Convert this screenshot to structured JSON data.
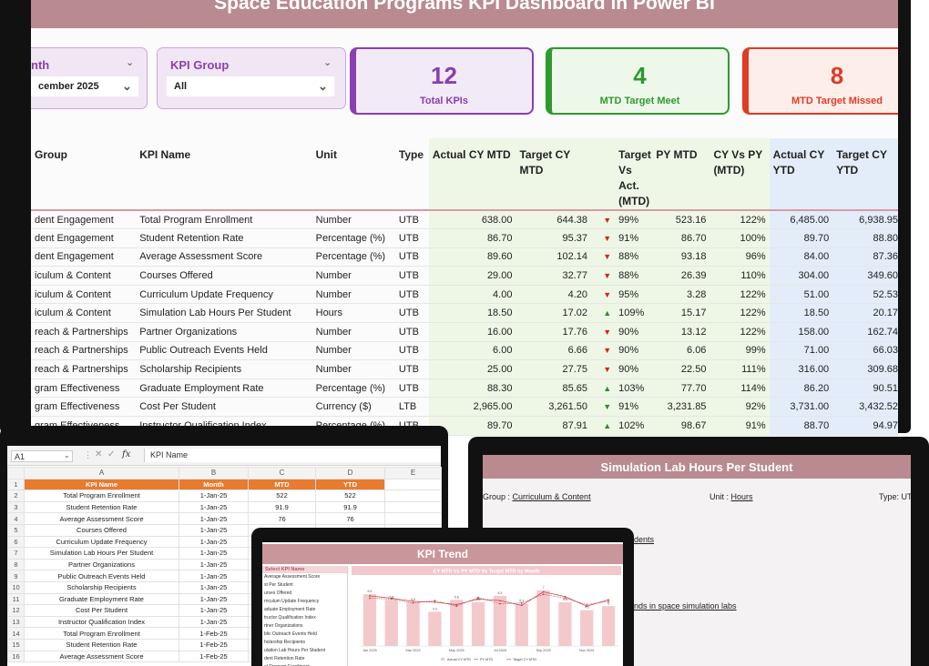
{
  "header": {
    "title": "Space Education Programs KPI Dashboard in Power BI"
  },
  "slicers": {
    "month": {
      "label": "nth",
      "value": "cember 2025"
    },
    "kpi_group": {
      "label": "KPI Group",
      "value": "All"
    }
  },
  "cards": {
    "total": {
      "value": "12",
      "caption": "Total KPIs",
      "color": "#8a3fb0"
    },
    "met": {
      "value": "4",
      "caption": "MTD Target Meet",
      "color": "#2e9a2e"
    },
    "missed": {
      "value": "8",
      "caption": "MTD Target Missed",
      "color": "#e03b24"
    }
  },
  "table": {
    "headers": {
      "group": "Group",
      "name": "KPI Name",
      "unit": "Unit",
      "type": "Type",
      "actual_mtd": "Actual CY MTD",
      "target_mtd": "Target CY MTD",
      "tva": "Target Vs Act. (MTD)",
      "py_mtd": "PY MTD",
      "cy_vs_py": "CY Vs PY (MTD)",
      "actual_ytd": "Actual CY YTD",
      "target_ytd": "Target CY YTD"
    },
    "rows": [
      {
        "group": "dent Engagement",
        "name": "Total Program Enrollment",
        "unit": "Number",
        "type": "UTB",
        "actual_mtd": "638.00",
        "target_mtd": "644.38",
        "dir": "down",
        "tva": "99%",
        "py_mtd": "523.16",
        "cy_vs_py": "122%",
        "actual_ytd": "6,485.00",
        "target_ytd": "6,938.95"
      },
      {
        "group": "dent Engagement",
        "name": "Student Retention Rate",
        "unit": "Percentage (%)",
        "type": "UTB",
        "actual_mtd": "86.70",
        "target_mtd": "95.37",
        "dir": "down",
        "tva": "91%",
        "py_mtd": "86.70",
        "cy_vs_py": "100%",
        "actual_ytd": "89.70",
        "target_ytd": "88.80"
      },
      {
        "group": "dent Engagement",
        "name": "Average Assessment Score",
        "unit": "Percentage (%)",
        "type": "UTB",
        "actual_mtd": "89.60",
        "target_mtd": "102.14",
        "dir": "down",
        "tva": "88%",
        "py_mtd": "93.18",
        "cy_vs_py": "96%",
        "actual_ytd": "84.00",
        "target_ytd": "87.36"
      },
      {
        "group": "iculum & Content",
        "name": "Courses Offered",
        "unit": "Number",
        "type": "UTB",
        "actual_mtd": "29.00",
        "target_mtd": "32.77",
        "dir": "down",
        "tva": "88%",
        "py_mtd": "26.39",
        "cy_vs_py": "110%",
        "actual_ytd": "304.00",
        "target_ytd": "349.60"
      },
      {
        "group": "iculum & Content",
        "name": "Curriculum Update Frequency",
        "unit": "Number",
        "type": "UTB",
        "actual_mtd": "4.00",
        "target_mtd": "4.20",
        "dir": "down",
        "tva": "95%",
        "py_mtd": "3.28",
        "cy_vs_py": "122%",
        "actual_ytd": "51.00",
        "target_ytd": "52.53"
      },
      {
        "group": "iculum & Content",
        "name": "Simulation Lab Hours Per Student",
        "unit": "Hours",
        "type": "UTB",
        "actual_mtd": "18.50",
        "target_mtd": "17.02",
        "dir": "up",
        "tva": "109%",
        "py_mtd": "15.17",
        "cy_vs_py": "122%",
        "actual_ytd": "18.50",
        "target_ytd": "20.17"
      },
      {
        "group": "reach & Partnerships",
        "name": "Partner Organizations",
        "unit": "Number",
        "type": "UTB",
        "actual_mtd": "16.00",
        "target_mtd": "17.76",
        "dir": "down",
        "tva": "90%",
        "py_mtd": "13.12",
        "cy_vs_py": "122%",
        "actual_ytd": "158.00",
        "target_ytd": "162.74"
      },
      {
        "group": "reach & Partnerships",
        "name": "Public Outreach Events Held",
        "unit": "Number",
        "type": "UTB",
        "actual_mtd": "6.00",
        "target_mtd": "6.66",
        "dir": "down",
        "tva": "90%",
        "py_mtd": "6.06",
        "cy_vs_py": "99%",
        "actual_ytd": "71.00",
        "target_ytd": "66.03"
      },
      {
        "group": "reach & Partnerships",
        "name": "Scholarship Recipients",
        "unit": "Number",
        "type": "UTB",
        "actual_mtd": "25.00",
        "target_mtd": "27.75",
        "dir": "down",
        "tva": "90%",
        "py_mtd": "22.50",
        "cy_vs_py": "111%",
        "actual_ytd": "316.00",
        "target_ytd": "309.68"
      },
      {
        "group": "gram Effectiveness",
        "name": "Graduate Employment Rate",
        "unit": "Percentage (%)",
        "type": "UTB",
        "actual_mtd": "88.30",
        "target_mtd": "85.65",
        "dir": "up",
        "tva": "103%",
        "py_mtd": "77.70",
        "cy_vs_py": "114%",
        "actual_ytd": "86.20",
        "target_ytd": "90.51"
      },
      {
        "group": "gram Effectiveness",
        "name": "Cost Per Student",
        "unit": "Currency ($)",
        "type": "LTB",
        "actual_mtd": "2,965.00",
        "target_mtd": "3,261.50",
        "dir": "down-good",
        "tva": "91%",
        "py_mtd": "3,231.85",
        "cy_vs_py": "92%",
        "actual_ytd": "3,731.00",
        "target_ytd": "3,432.52"
      },
      {
        "group": "gram Effectiveness",
        "name": "Instructor Qualification Index",
        "unit": "Percentage (%)",
        "type": "UTB",
        "actual_mtd": "89.70",
        "target_mtd": "87.91",
        "dir": "up",
        "tva": "102%",
        "py_mtd": "98.67",
        "cy_vs_py": "91%",
        "actual_ytd": "88.70",
        "target_ytd": "94.97"
      }
    ]
  },
  "excel": {
    "name_box": "A1",
    "formula_icon": "fx",
    "formula_value": "KPI Name",
    "col_letters": [
      "A",
      "B",
      "C",
      "D",
      "E"
    ],
    "header_row": [
      "KPI Name",
      "Month",
      "MTD",
      "YTD"
    ],
    "rows": [
      [
        "Total Program Enrollment",
        "1-Jan-25",
        "522",
        "522"
      ],
      [
        "Student Retention Rate",
        "1-Jan-25",
        "91.9",
        "91.9"
      ],
      [
        "Average Assessment Score",
        "1-Jan-25",
        "76",
        "76"
      ],
      [
        "Courses Offered",
        "1-Jan-25",
        "",
        ""
      ],
      [
        "Curriculum Update Frequency",
        "1-Jan-25",
        "",
        ""
      ],
      [
        "Simulation Lab Hours Per Student",
        "1-Jan-25",
        "",
        ""
      ],
      [
        "Partner Organizations",
        "1-Jan-25",
        "",
        ""
      ],
      [
        "Public Outreach Events Held",
        "1-Jan-25",
        "",
        ""
      ],
      [
        "Scholarship Recipients",
        "1-Jan-25",
        "",
        ""
      ],
      [
        "Graduate Employment Rate",
        "1-Jan-25",
        "",
        ""
      ],
      [
        "Cost Per Student",
        "1-Jan-25",
        "",
        ""
      ],
      [
        "Instructor Qualification Index",
        "1-Jan-25",
        "",
        ""
      ],
      [
        "Total Program Enrollment",
        "1-Feb-25",
        "",
        ""
      ],
      [
        "Student Retention Rate",
        "1-Feb-25",
        "",
        ""
      ],
      [
        "Average Assessment Score",
        "1-Feb-25",
        "",
        ""
      ]
    ]
  },
  "sim_panel": {
    "title": "Simulation Lab Hours Per Student",
    "group_label": "Group :",
    "group_value": "Curriculum & Content",
    "unit_label": "Unit :",
    "unit_value": "Hours",
    "type_label": "Type: UT",
    "line1": "dents",
    "line2": "nds in space simulation labs"
  },
  "trend": {
    "title": "KPI Trend",
    "list_header": "Select KPI Name",
    "kpis": [
      "Average Assessment Score",
      "st Per Student",
      "urses Offered",
      "rriculum Update Frequency",
      "aduate Employment Rate",
      "tructor Qualification Index",
      "rtner Organizations",
      "blic Outreach Events Held",
      "holarship Recipients",
      "ulation Lab Hours Per Student",
      "dent Retention Rate",
      "al Program Enrollment"
    ],
    "chart_title": "CY MTD Vs PY MTD Vs Target MTD by Month",
    "x_labels": [
      "Jan 2025",
      "Mar 2025",
      "May 2025",
      "Jul 2025",
      "Sep 2025",
      "Nov 2025"
    ],
    "legend": [
      "Actual CY MTD",
      "PY MTD",
      "Target CY MTD"
    ]
  },
  "chart_data": {
    "type": "bar",
    "title": "CY MTD Vs PY MTD Vs Target MTD by Month",
    "categories": [
      "Jan 2025",
      "Feb 2025",
      "Mar 2025",
      "Apr 2025",
      "May 2025",
      "Jun 2025",
      "Jul 2025",
      "Aug 2025",
      "Sep 2025",
      "Oct 2025",
      "Nov 2025",
      "Dec 2025"
    ],
    "series": [
      {
        "name": "Actual CY MTD",
        "kind": "bar",
        "values": [
          6.5,
          5.8,
          5.5,
          4.3,
          5.8,
          5.5,
          6.3,
          5.3,
          7.0,
          5.5,
          4.5,
          5.0
        ]
      },
      {
        "name": "PY MTD",
        "kind": "line",
        "values": [
          6.3,
          6.0,
          5.6,
          5.5,
          5.2,
          5.9,
          5.7,
          5.1,
          6.8,
          6.2,
          5.0,
          5.8
        ]
      },
      {
        "name": "Target CY MTD",
        "kind": "line",
        "values": [
          6.0,
          5.9,
          5.4,
          5.7,
          5.0,
          6.1,
          5.3,
          5.4,
          6.5,
          6.0,
          5.2,
          5.6
        ]
      }
    ],
    "colors": {
      "bars": "#f4c9cc",
      "line": "#c0454c"
    }
  }
}
